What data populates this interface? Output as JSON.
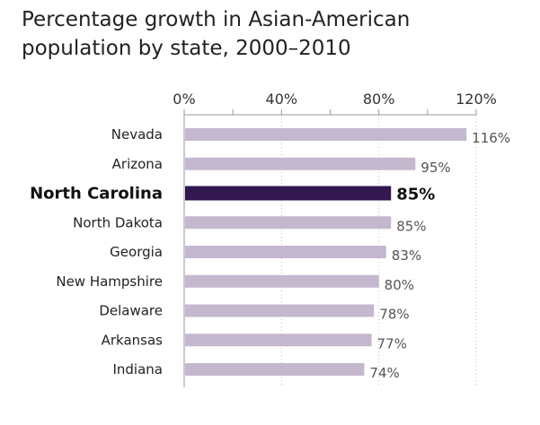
{
  "chart_data": {
    "type": "bar",
    "orientation": "horizontal",
    "title": "Percentage growth in Asian-American population by state, 2000–2010",
    "xlabel": "",
    "ylabel": "",
    "xlim": [
      0,
      120
    ],
    "x_ticks": [
      0,
      40,
      80,
      120
    ],
    "x_tick_labels": [
      "0%",
      "40%",
      "80%",
      "120%"
    ],
    "grid": true,
    "categories": [
      "Nevada",
      "Arizona",
      "North Carolina",
      "North Dakota",
      "Georgia",
      "New Hampshire",
      "Delaware",
      "Arkansas",
      "Indiana"
    ],
    "values": [
      116,
      95,
      85,
      85,
      83,
      80,
      78,
      77,
      74
    ],
    "value_labels": [
      "116%",
      "95%",
      "85%",
      "85%",
      "83%",
      "80%",
      "78%",
      "77%",
      "74%"
    ],
    "highlight": "North Carolina",
    "colors": {
      "bar": "#c4b8cf",
      "highlight_bar": "#33174f",
      "axis": "#999999",
      "grid": "#bbbbbb"
    }
  }
}
